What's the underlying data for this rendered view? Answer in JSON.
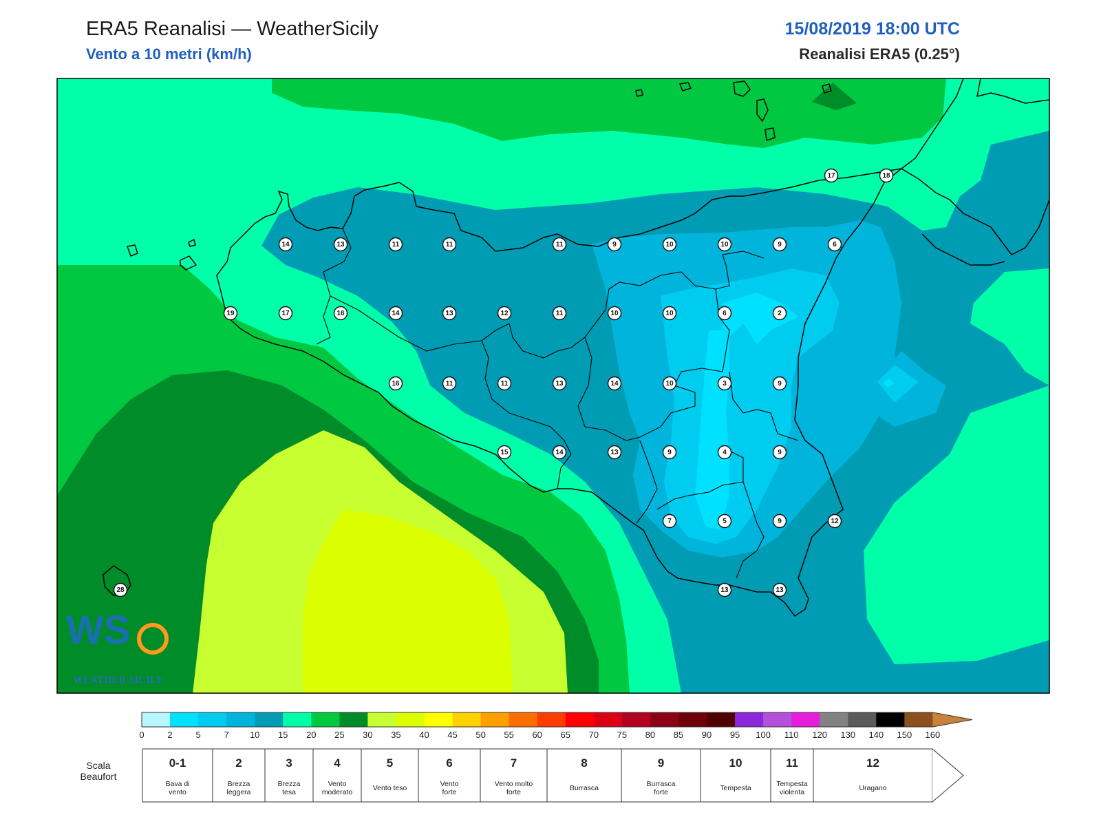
{
  "header": {
    "title": "ERA5 Reanalisi — WeatherSicily",
    "subtitle": "Vento a 10 metri (km/h)",
    "datetime": "15/08/2019 18:00 UTC",
    "source": "Reanalisi ERA5 (0.25°)"
  },
  "logo": {
    "letters": "WS",
    "text": "WEATHER SICILY"
  },
  "stations": [
    {
      "value": "17"
    },
    {
      "value": "18"
    },
    {
      "value": "14"
    },
    {
      "value": "13"
    },
    {
      "value": "11"
    },
    {
      "value": "11"
    },
    {
      "value": "11"
    },
    {
      "value": "9"
    },
    {
      "value": "10"
    },
    {
      "value": "10"
    },
    {
      "value": "9"
    },
    {
      "value": "6"
    },
    {
      "value": "19"
    },
    {
      "value": "17"
    },
    {
      "value": "16"
    },
    {
      "value": "14"
    },
    {
      "value": "13"
    },
    {
      "value": "12"
    },
    {
      "value": "11"
    },
    {
      "value": "10"
    },
    {
      "value": "10"
    },
    {
      "value": "6"
    },
    {
      "value": "2"
    },
    {
      "value": "16"
    },
    {
      "value": "11"
    },
    {
      "value": "11"
    },
    {
      "value": "13"
    },
    {
      "value": "14"
    },
    {
      "value": "10"
    },
    {
      "value": "3"
    },
    {
      "value": "9"
    },
    {
      "value": "15"
    },
    {
      "value": "14"
    },
    {
      "value": "13"
    },
    {
      "value": "9"
    },
    {
      "value": "4"
    },
    {
      "value": "9"
    },
    {
      "value": "7"
    },
    {
      "value": "5"
    },
    {
      "value": "9"
    },
    {
      "value": "12"
    },
    {
      "value": "13"
    },
    {
      "value": "13"
    },
    {
      "value": "28"
    }
  ],
  "colorbar": {
    "ticks": [
      "0",
      "2",
      "5",
      "7",
      "10",
      "15",
      "20",
      "25",
      "30",
      "35",
      "40",
      "45",
      "50",
      "55",
      "60",
      "65",
      "70",
      "75",
      "80",
      "85",
      "90",
      "95",
      "100",
      "110",
      "120",
      "130",
      "140",
      "150",
      "160"
    ],
    "colors": [
      "#b8f7ff",
      "#00e0ff",
      "#00ccf0",
      "#00b4dc",
      "#009cb4",
      "#00ffa8",
      "#00c840",
      "#008c28",
      "#c8ff30",
      "#dcff00",
      "#ffff00",
      "#ffd200",
      "#ffa000",
      "#ff6e00",
      "#ff3c00",
      "#ff0000",
      "#dc0014",
      "#b40020",
      "#8c0018",
      "#6e0008",
      "#500000",
      "#8c28dc",
      "#b450dc",
      "#e61edc",
      "#828282",
      "#5a5a5a",
      "#000000",
      "#8c501e",
      "#c8823c"
    ]
  },
  "beaufort": {
    "title_line1": "Scala",
    "title_line2": "Beaufort",
    "levels": [
      {
        "number": "0-1",
        "line1": "Bava di",
        "line2": "vento"
      },
      {
        "number": "2",
        "line1": "Brezza",
        "line2": "leggera"
      },
      {
        "number": "3",
        "line1": "Brezza",
        "line2": "tesa"
      },
      {
        "number": "4",
        "line1": "Vento",
        "line2": "moderato"
      },
      {
        "number": "5",
        "line1": "Vento teso",
        "line2": ""
      },
      {
        "number": "6",
        "line1": "Vento",
        "line2": "forte"
      },
      {
        "number": "7",
        "line1": "Vento molto",
        "line2": "forte"
      },
      {
        "number": "8",
        "line1": "Burrasca",
        "line2": ""
      },
      {
        "number": "9",
        "line1": "Burrasca",
        "line2": "forte"
      },
      {
        "number": "10",
        "line1": "Tempesta",
        "line2": ""
      },
      {
        "number": "11",
        "line1": "Tempesta",
        "line2": "violenta"
      },
      {
        "number": "12",
        "line1": "Uragano",
        "line2": ""
      }
    ]
  }
}
